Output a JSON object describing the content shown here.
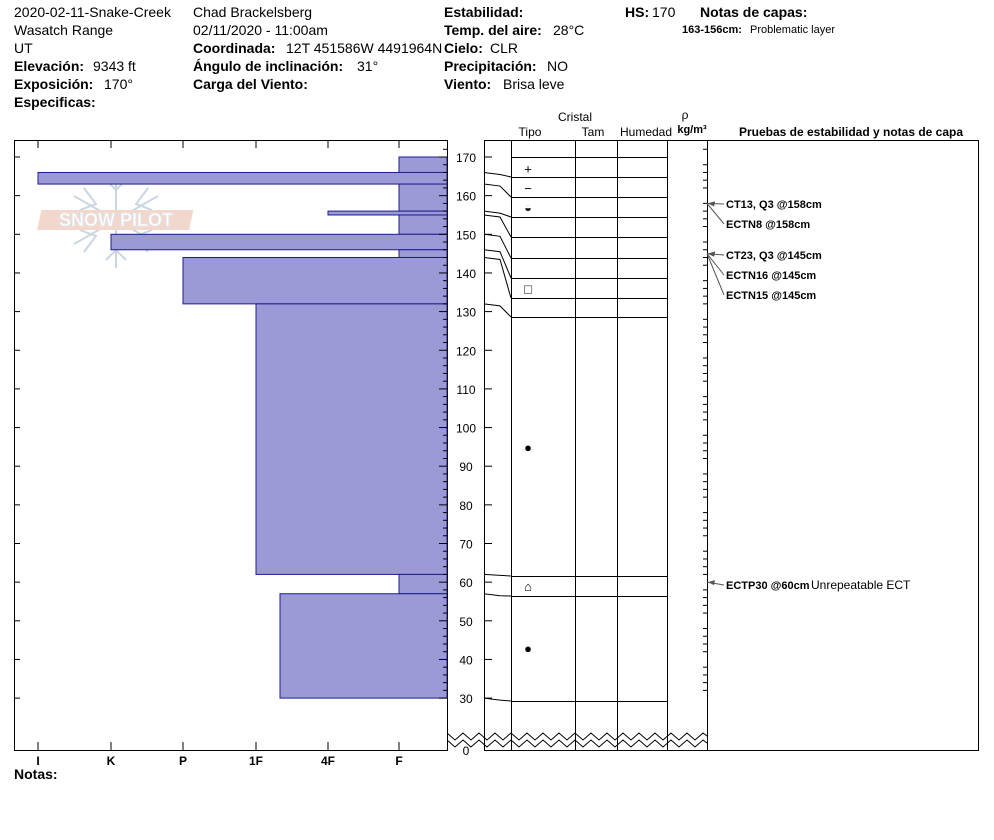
{
  "header": {
    "col1": {
      "pit_name": "2020-02-11-Snake-Creek",
      "range": "Wasatch Range",
      "state": "UT",
      "elevation_label": "Elevación:",
      "elevation": "9343 ft",
      "aspect_label": "Exposición:",
      "aspect": "170°",
      "specifics_label": "Especificas:"
    },
    "col2": {
      "observer": "Chad Brackelsberg",
      "datetime": "02/11/2020 - 11:00am",
      "coord_label": "Coordinada:",
      "coord": "12T 451586W 4491964N",
      "slope_label": "Ángulo de inclinación:",
      "slope": "31°",
      "wind_load_label": "Carga del Viento:"
    },
    "col3": {
      "stability_label": "Estabilidad:",
      "air_temp_label": "Temp. del aire:",
      "air_temp": "28°C",
      "sky_label": "Cielo:",
      "sky": "CLR",
      "precip_label": "Precipitación:",
      "precip": "NO",
      "wind_label": "Viento:",
      "wind": "Brisa leve"
    },
    "hs_label": "HS:",
    "hs": "170",
    "layer_notes_label": "Notas de capas:",
    "layer_note_range": "163-156cm:",
    "layer_note_text": "Problematic layer"
  },
  "logo_text": "SNOW PILOT",
  "notes_label": "Notas:",
  "columns": {
    "crystal": "Cristal",
    "type": "Tipo",
    "size": "Tam",
    "moisture": "Humedad",
    "rho": "ρ",
    "density_unit": "kg/m³",
    "tests": "Pruebas de estabilidad y notas de capa"
  },
  "chart_data": {
    "type": "bar",
    "orientation": "horizontal",
    "x_axis_ticks": [
      "I",
      "K",
      "P",
      "1F",
      "4F",
      "F"
    ],
    "y_axis_ticks": [
      "170",
      "160",
      "150",
      "140",
      "130",
      "120",
      "110",
      "100",
      "90",
      "80",
      "70",
      "60",
      "50",
      "40",
      "30",
      "0"
    ],
    "ylim": [
      0,
      170
    ],
    "hardness_layers": [
      {
        "top": 170,
        "bottom": 166,
        "hardness": "F"
      },
      {
        "top": 166,
        "bottom": 163,
        "hardness": "I"
      },
      {
        "top": 163,
        "bottom": 156,
        "hardness": "F"
      },
      {
        "top": 156,
        "bottom": 155,
        "hardness": "4F"
      },
      {
        "top": 155,
        "bottom": 150,
        "hardness": "F"
      },
      {
        "top": 150,
        "bottom": 146,
        "hardness": "K"
      },
      {
        "top": 146,
        "bottom": 144,
        "hardness": "F"
      },
      {
        "top": 144,
        "bottom": 132,
        "hardness": "P"
      },
      {
        "top": 132,
        "bottom": 62,
        "hardness": "1F"
      },
      {
        "top": 62,
        "bottom": 57,
        "hardness": "F"
      },
      {
        "top": 57,
        "bottom": 30,
        "hardness": "1F-"
      }
    ],
    "grain_symbols": [
      {
        "depth": 167,
        "symbol": "+"
      },
      {
        "depth": 162,
        "symbol": "−"
      },
      {
        "depth": 157,
        "symbol": "◒"
      },
      {
        "depth": 136,
        "symbol": "□"
      },
      {
        "depth": 95,
        "symbol": "●"
      },
      {
        "depth": 59,
        "symbol": "⌂"
      },
      {
        "depth": 43,
        "symbol": "●"
      }
    ],
    "stability_tests": [
      {
        "depth": 158,
        "label": "CT13, Q3 @158cm",
        "note": ""
      },
      {
        "depth": 158,
        "label": "ECTN8 @158cm",
        "note": ""
      },
      {
        "depth": 145,
        "label": "CT23, Q3 @145cm",
        "note": ""
      },
      {
        "depth": 145,
        "label": "ECTN16 @145cm",
        "note": ""
      },
      {
        "depth": 145,
        "label": "ECTN15 @145cm",
        "note": ""
      },
      {
        "depth": 60,
        "label": "ECTP30 @60cm",
        "note": "Unrepeatable ECT"
      }
    ]
  }
}
